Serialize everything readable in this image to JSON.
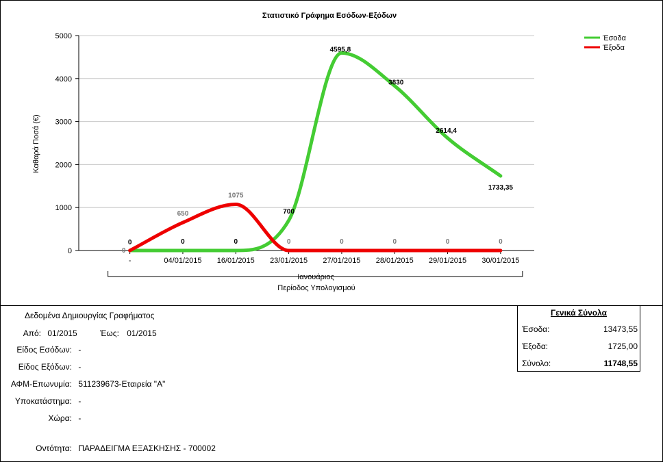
{
  "chart_data": {
    "type": "line",
    "title": "Στατιστικό Γράφημα Εσόδων-Εξόδων",
    "ylabel": "Καθαρά Ποσά (€)",
    "xgroup_label": "Ιανουάριος",
    "xlabel": "Περίοδος Υπολογισμού",
    "ylim": [
      0,
      5000
    ],
    "yticks": [
      "0",
      "1000",
      "2000",
      "3000",
      "4000",
      "5000"
    ],
    "categories": [
      "-",
      "04/01/2015",
      "16/01/2015",
      "23/01/2015",
      "27/01/2015",
      "28/01/2015",
      "29/01/2015",
      "30/01/2015"
    ],
    "legend_position": "top-right",
    "series": [
      {
        "name": "Έσοδα",
        "color": "#44cc33",
        "values": [
          0,
          0,
          0,
          700,
          4595.8,
          3830,
          2614.4,
          1733.35
        ],
        "labels": [
          "0",
          "0",
          "0",
          "700",
          "4595,8",
          "3830",
          "2614,4",
          "1733,35"
        ]
      },
      {
        "name": "Έξοδα",
        "color": "#ee0000",
        "values": [
          0,
          650,
          1075,
          0,
          0,
          0,
          0,
          0
        ],
        "labels": [
          "0",
          "650",
          "1075",
          "0",
          "0",
          "0",
          "0",
          "0"
        ]
      }
    ]
  },
  "info": {
    "heading": "Δεδομένα Δημιουργίας Γραφήματος",
    "from_label": "Από:",
    "from_value": "01/2015",
    "to_label": "Έως:",
    "to_value": "01/2015",
    "income_type_label": "Είδος Εσόδων:",
    "income_type_value": "-",
    "expense_type_label": "Είδος Εξόδων:",
    "expense_type_value": "-",
    "afm_label": "ΑΦΜ-Επωνυμία:",
    "afm_value": "511239673-Εταιρεία \"Α\"",
    "branch_label": "Υποκατάστημα:",
    "branch_value": "-",
    "country_label": "Χώρα:",
    "country_value": "-",
    "entity_label": "Οντότητα:",
    "entity_value": "ΠΑΡΑΔΕΙΓΜΑ ΕΞΑΣΚΗΣΗΣ - 700002"
  },
  "totals": {
    "title": "Γενικά Σύνολα",
    "income_label": "Έσοδα:",
    "income_value": "13473,55",
    "expense_label": "Έξοδα:",
    "expense_value": "1725,00",
    "sum_label": "Σύνολο:",
    "sum_value": "11748,55"
  }
}
